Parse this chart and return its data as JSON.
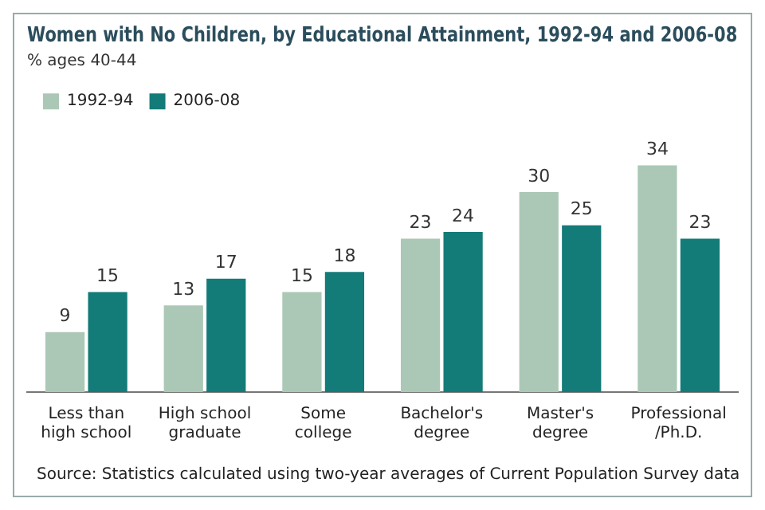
{
  "chart_data": {
    "type": "bar",
    "title": "Women with No Children, by Educational Attainment, 1992-94 and 2006-08",
    "subtitle": "% ages 40-44",
    "categories": [
      "Less than high school",
      "High school graduate",
      "Some college",
      "Bachelor's degree",
      "Master's degree",
      "Professional /Ph.D."
    ],
    "series": [
      {
        "name": "1992-94",
        "color": "#abc8b6",
        "values": [
          9,
          13,
          15,
          23,
          30,
          34
        ]
      },
      {
        "name": "2006-08",
        "color": "#137b78",
        "values": [
          15,
          17,
          18,
          24,
          25,
          23
        ]
      }
    ],
    "data_labels": true,
    "legend": "top left",
    "grid": false,
    "annotations": [
      "Source: Statistics calculated using two-year averages of Current Population Survey data"
    ]
  }
}
